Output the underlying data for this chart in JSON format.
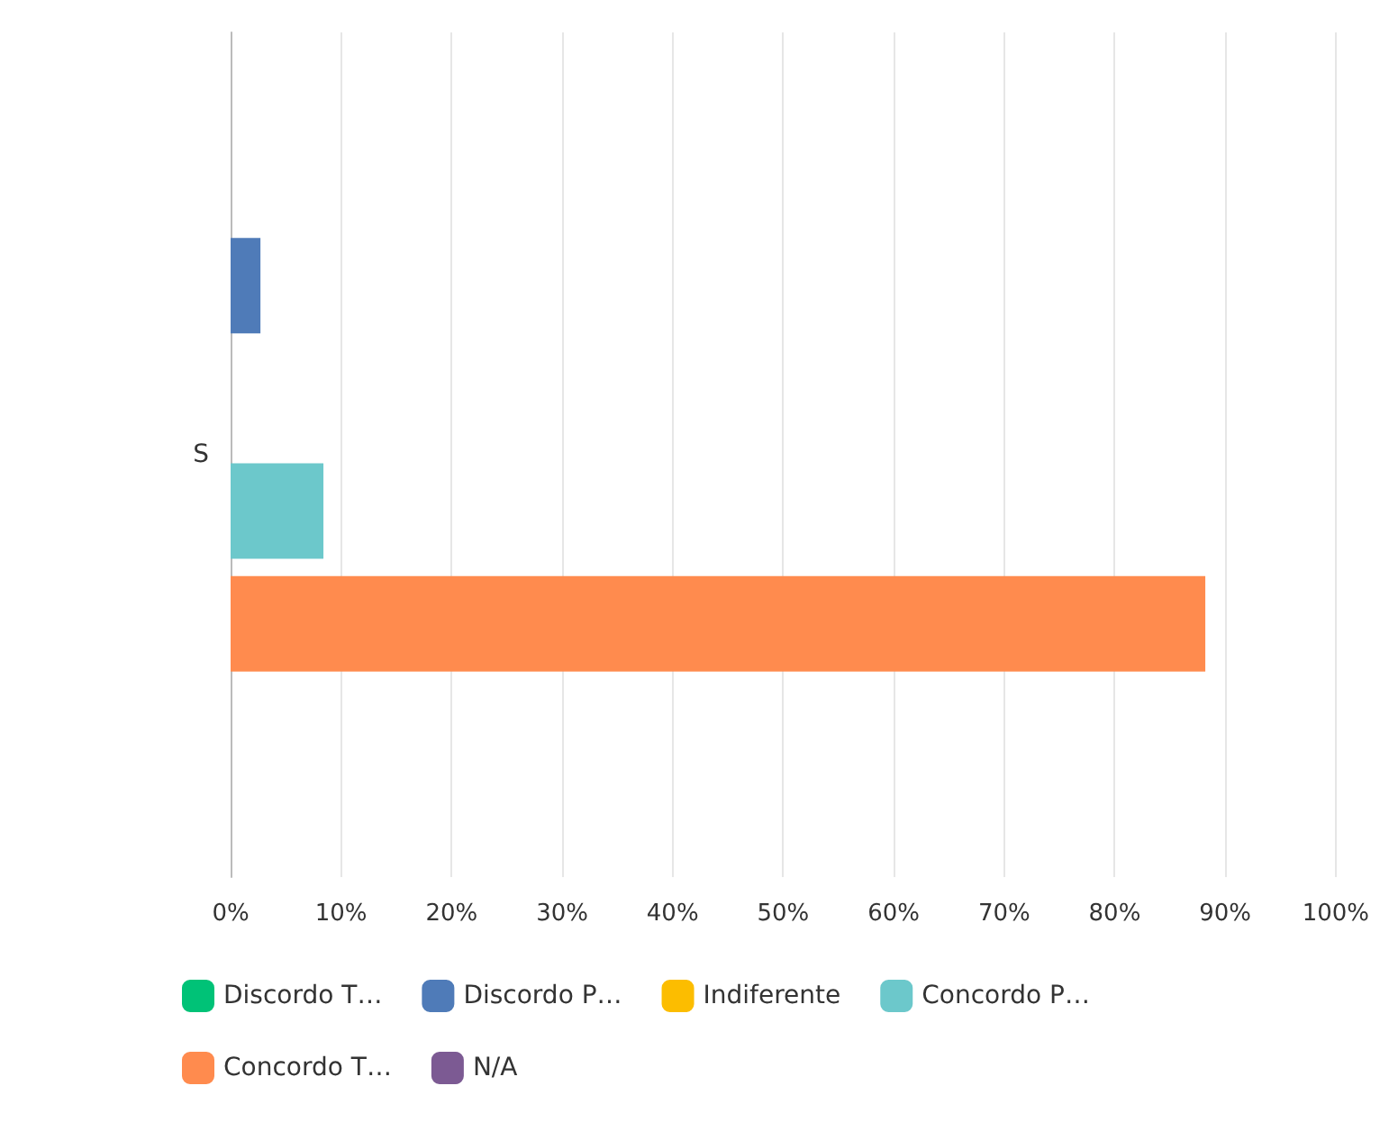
{
  "chart_data": {
    "type": "bar",
    "orientation": "horizontal",
    "categories": [
      "S"
    ],
    "series": [
      {
        "name": "Discordo T…",
        "color": "#00c277",
        "values": [
          0
        ]
      },
      {
        "name": "Discordo P…",
        "color": "#4f7bb8",
        "values": [
          2.7
        ]
      },
      {
        "name": "Indiferente",
        "color": "#fcbd00",
        "values": [
          0
        ]
      },
      {
        "name": "Concordo P…",
        "color": "#6cc8cb",
        "values": [
          8.4
        ]
      },
      {
        "name": "Concordo T…",
        "color": "#ff8b4e",
        "values": [
          88.2
        ]
      },
      {
        "name": "N/A",
        "color": "#7c5a93",
        "values": [
          0
        ]
      }
    ],
    "xlim": [
      0,
      100
    ],
    "xticks": [
      {
        "value": 0,
        "label": "0%"
      },
      {
        "value": 10,
        "label": "10%"
      },
      {
        "value": 20,
        "label": "20%"
      },
      {
        "value": 30,
        "label": "30%"
      },
      {
        "value": 40,
        "label": "40%"
      },
      {
        "value": 50,
        "label": "50%"
      },
      {
        "value": 60,
        "label": "60%"
      },
      {
        "value": 70,
        "label": "70%"
      },
      {
        "value": 80,
        "label": "80%"
      },
      {
        "value": 90,
        "label": "90%"
      },
      {
        "value": 100,
        "label": "100%"
      }
    ],
    "grid": "x",
    "legend": "bottom"
  }
}
